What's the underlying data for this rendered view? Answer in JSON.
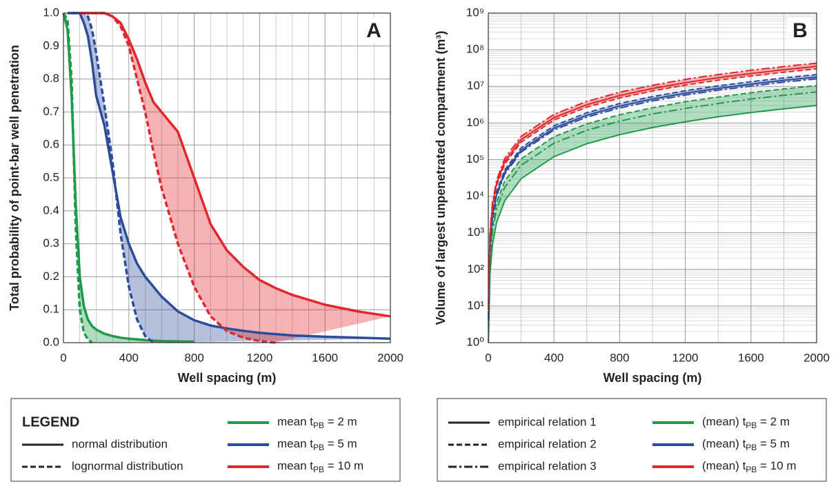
{
  "chart_data": [
    {
      "type": "line",
      "panel_label": "A",
      "x_label": "Well spacing (m)",
      "y_label": "Total probability of point-bar well penetration",
      "x": [
        0,
        25,
        50,
        75,
        100,
        125,
        150,
        175,
        200,
        250,
        300,
        350,
        400,
        450,
        500,
        550,
        600,
        700,
        800,
        900,
        1000,
        1100,
        1200,
        1300,
        1400,
        1600,
        1800,
        2000
      ],
      "xlim": [
        0,
        2000
      ],
      "xticks": [
        0,
        400,
        800,
        1200,
        1600,
        2000
      ],
      "ylim": [
        0,
        1
      ],
      "yticks": [
        {
          "value": 0,
          "label": "0.0"
        },
        0.1,
        0.2,
        0.3,
        0.4,
        0.5,
        0.6,
        0.7,
        0.8,
        0.9,
        {
          "value": 1,
          "label": "1.0"
        }
      ],
      "log_y": false,
      "grid": true,
      "minor_grid_divisions": 4,
      "series": [
        {
          "color": "#1e9a4b",
          "dash": "solid",
          "values": [
            1.0,
            0.95,
            0.75,
            0.42,
            0.2,
            0.11,
            0.07,
            0.05,
            0.04,
            0.027,
            0.02,
            0.015,
            0.012,
            0.01,
            0.008,
            0.006,
            0.005,
            0.004,
            0.003,
            null,
            null,
            null,
            null,
            null,
            null,
            null,
            null,
            null
          ]
        },
        {
          "color": "#1e9a4b",
          "dash": "dashed",
          "values": [
            1.0,
            0.98,
            0.8,
            0.35,
            0.1,
            0.03,
            0.01,
            0.0,
            null,
            null,
            null,
            null,
            null,
            null,
            null,
            null,
            null,
            null,
            null,
            null,
            null,
            null,
            null,
            null,
            null,
            null,
            null,
            null
          ]
        },
        {
          "color": "#2b4c9b",
          "dash": "solid",
          "values": [
            null,
            1.0,
            1.0,
            1.0,
            1.0,
            0.97,
            0.93,
            0.85,
            0.75,
            0.66,
            0.52,
            0.38,
            0.3,
            0.24,
            0.2,
            0.17,
            0.14,
            0.095,
            0.068,
            0.052,
            0.043,
            0.036,
            0.03,
            0.026,
            0.022,
            0.018,
            0.015,
            0.012
          ]
        },
        {
          "color": "#2b4c9b",
          "dash": "dashed",
          "values": [
            null,
            null,
            1.0,
            1.0,
            1.0,
            1.0,
            0.99,
            0.95,
            0.88,
            0.72,
            0.55,
            0.33,
            0.17,
            0.07,
            0.02,
            0.0,
            null,
            null,
            null,
            null,
            null,
            null,
            null,
            null,
            null,
            null,
            null,
            null
          ]
        },
        {
          "color": "#e1262c",
          "dash": "solid",
          "values": [
            null,
            null,
            null,
            null,
            1.0,
            1.0,
            1.0,
            1.0,
            1.0,
            1.0,
            0.99,
            0.97,
            0.92,
            0.86,
            0.79,
            0.73,
            0.7,
            0.64,
            0.5,
            0.36,
            0.28,
            0.23,
            0.19,
            0.165,
            0.145,
            0.115,
            0.095,
            0.08
          ]
        },
        {
          "color": "#e1262c",
          "dash": "dashed",
          "values": [
            null,
            null,
            null,
            null,
            null,
            1.0,
            1.0,
            1.0,
            1.0,
            1.0,
            0.99,
            0.96,
            0.9,
            0.8,
            0.7,
            0.58,
            0.47,
            0.3,
            0.17,
            0.08,
            0.035,
            0.015,
            0.005,
            0.0,
            null,
            null,
            null,
            null
          ]
        }
      ],
      "fill_between": [
        [
          0,
          1
        ],
        [
          2,
          3
        ],
        [
          4,
          5
        ]
      ],
      "legend": {
        "title": "LEGEND",
        "styles": [
          {
            "dash": "solid",
            "label": "normal distribution"
          },
          {
            "dash": "dashed",
            "label": "lognormal distribution"
          }
        ],
        "colors": [
          {
            "color": "#1e9a4b",
            "text": "mean t",
            "sub": "PB",
            "rest": " = 2 m"
          },
          {
            "color": "#2b4c9b",
            "text": "mean t",
            "sub": "PB",
            "rest": " = 5 m"
          },
          {
            "color": "#e1262c",
            "text": "mean t",
            "sub": "PB",
            "rest": " = 10 m"
          }
        ]
      }
    },
    {
      "type": "line",
      "panel_label": "B",
      "x_label": "Well spacing (m)",
      "y_label": "Volume of largest unpenetrated compartment (m³)",
      "x": [
        1,
        10,
        25,
        50,
        100,
        200,
        400,
        600,
        800,
        1000,
        1200,
        1400,
        1600,
        1800,
        2000
      ],
      "xlim": [
        0,
        2000
      ],
      "xticks": [
        0,
        400,
        800,
        1200,
        1600,
        2000
      ],
      "ylim": [
        1,
        1000000000
      ],
      "yticks": [
        {
          "value": 1,
          "label": "10⁰"
        },
        {
          "value": 10,
          "label": "10¹"
        },
        {
          "value": 100,
          "label": "10²"
        },
        {
          "value": 1000,
          "label": "10³"
        },
        {
          "value": 10000,
          "label": "10⁴"
        },
        {
          "value": 100000,
          "label": "10⁵"
        },
        {
          "value": 1000000,
          "label": "10⁶"
        },
        {
          "value": 10000000,
          "label": "10⁷"
        },
        {
          "value": 100000000,
          "label": "10⁸"
        },
        {
          "value": 1000000000,
          "label": "10⁹"
        }
      ],
      "log_y": true,
      "grid": true,
      "minor_grid_divisions": 2,
      "series": [
        {
          "color": "#1e9a4b",
          "dash": "solid",
          "values": [
            1,
            75,
            470,
            1900,
            7500,
            30000,
            120000,
            270000,
            480000,
            750000,
            1080000,
            1470000,
            1920000,
            2430000,
            3000000
          ]
        },
        {
          "color": "#1e9a4b",
          "dash": "dashed",
          "values": [
            3,
            260,
            1640,
            6600,
            26000,
            105000,
            420000,
            945000,
            1680000,
            2600000,
            3800000,
            5100000,
            6700000,
            8500000,
            10500000
          ]
        },
        {
          "color": "#1e9a4b",
          "dash": "dashdot",
          "values": [
            2,
            175,
            1100,
            4400,
            17500,
            70000,
            280000,
            630000,
            1120000,
            1750000,
            2500000,
            3400000,
            4500000,
            5700000,
            7000000
          ]
        },
        {
          "color": "#2b4c9b",
          "dash": "solid",
          "values": [
            4,
            450,
            2800,
            11000,
            45000,
            180000,
            720000,
            1620000,
            2900000,
            4500000,
            6500000,
            8800000,
            11500000,
            14600000,
            18000000
          ]
        },
        {
          "color": "#2b4c9b",
          "dash": "dashed",
          "values": [
            5,
            525,
            3300,
            13000,
            52000,
            210000,
            840000,
            1900000,
            3400000,
            5250000,
            7600000,
            10300000,
            13400000,
            17000000,
            21000000
          ]
        },
        {
          "color": "#2b4c9b",
          "dash": "dashdot",
          "values": [
            4,
            400,
            2500,
            10000,
            40000,
            160000,
            640000,
            1440000,
            2560000,
            4000000,
            5760000,
            7840000,
            10200000,
            13000000,
            16000000
          ]
        },
        {
          "color": "#e1262c",
          "dash": "solid",
          "values": [
            9,
            875,
            5500,
            22000,
            87500,
            350000,
            1400000,
            3150000,
            5600000,
            8750000,
            12600000,
            17200000,
            22400000,
            28400000,
            35000000
          ]
        },
        {
          "color": "#e1262c",
          "dash": "dashed",
          "values": [
            8,
            750,
            4700,
            19000,
            75000,
            300000,
            1200000,
            2700000,
            4800000,
            7500000,
            10800000,
            14700000,
            19200000,
            24300000,
            30000000
          ]
        },
        {
          "color": "#e1262c",
          "dash": "dashdot",
          "values": [
            11,
            1075,
            6700,
            27000,
            107500,
            430000,
            1720000,
            3870000,
            6900000,
            10750000,
            15500000,
            21000000,
            27500000,
            34800000,
            43000000
          ]
        }
      ],
      "fill_between": [
        [
          0,
          1
        ],
        [
          5,
          4
        ],
        [
          7,
          8
        ]
      ],
      "legend": {
        "styles": [
          {
            "dash": "solid",
            "label": "empirical relation 1"
          },
          {
            "dash": "dashed",
            "label": "empirical relation 2"
          },
          {
            "dash": "dashdot",
            "label": "empirical relation 3"
          }
        ],
        "colors": [
          {
            "color": "#1e9a4b",
            "text": "(mean) t",
            "sub": "PB",
            "rest": " = 2 m"
          },
          {
            "color": "#2b4c9b",
            "text": "(mean) t",
            "sub": "PB",
            "rest": " = 5 m"
          },
          {
            "color": "#e1262c",
            "text": "(mean) t",
            "sub": "PB",
            "rest": " = 10 m"
          }
        ]
      }
    }
  ]
}
